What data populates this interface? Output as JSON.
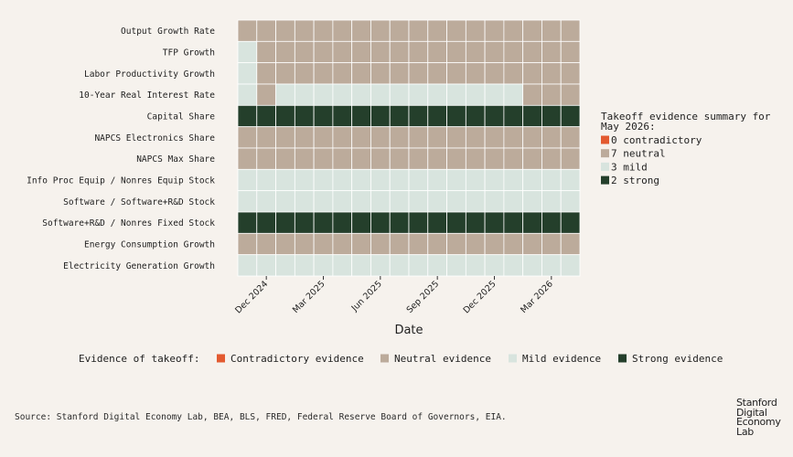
{
  "chart_data": {
    "type": "heatmap",
    "title": "",
    "xlabel": "Date",
    "ylabel": "",
    "x_ticks": [
      "Dec 2024",
      "Mar 2025",
      "Jun 2025",
      "Sep 2025",
      "Dec 2025",
      "Mar 2026"
    ],
    "x_periods": [
      "Nov 2024",
      "Dec 2024",
      "Jan 2025",
      "Feb 2025",
      "Mar 2025",
      "Apr 2025",
      "May 2025",
      "Jun 2025",
      "Jul 2025",
      "Aug 2025",
      "Sep 2025",
      "Oct 2025",
      "Nov 2025",
      "Dec 2025",
      "Jan 2026",
      "Feb 2026",
      "Mar 2026",
      "Apr 2026"
    ],
    "categories": [
      "Output Growth Rate",
      "TFP Growth",
      "Labor Productivity Growth",
      "10-Year Real Interest Rate",
      "Capital Share",
      "NAPCS Electronics Share",
      "NAPCS Max Share",
      "Info Proc Equip / Nonres Equip Stock",
      "Software / Software+R&D Stock",
      "Software+R&D / Nonres Fixed Stock",
      "Energy Consumption Growth",
      "Electricity Generation Growth"
    ],
    "levels": [
      "contradictory",
      "neutral",
      "mild",
      "strong"
    ],
    "colors": {
      "contradictory": "#e35a30",
      "neutral": "#bcab9b",
      "mild": "#d8e4de",
      "strong": "#243f2b"
    },
    "grid_color": "#ffffff",
    "values": [
      [
        "neutral",
        "neutral",
        "neutral",
        "neutral",
        "neutral",
        "neutral",
        "neutral",
        "neutral",
        "neutral",
        "neutral",
        "neutral",
        "neutral",
        "neutral",
        "neutral",
        "neutral",
        "neutral",
        "neutral",
        "neutral"
      ],
      [
        "mild",
        "neutral",
        "neutral",
        "neutral",
        "neutral",
        "neutral",
        "neutral",
        "neutral",
        "neutral",
        "neutral",
        "neutral",
        "neutral",
        "neutral",
        "neutral",
        "neutral",
        "neutral",
        "neutral",
        "neutral"
      ],
      [
        "mild",
        "neutral",
        "neutral",
        "neutral",
        "neutral",
        "neutral",
        "neutral",
        "neutral",
        "neutral",
        "neutral",
        "neutral",
        "neutral",
        "neutral",
        "neutral",
        "neutral",
        "neutral",
        "neutral",
        "neutral"
      ],
      [
        "mild",
        "neutral",
        "mild",
        "mild",
        "mild",
        "mild",
        "mild",
        "mild",
        "mild",
        "mild",
        "mild",
        "mild",
        "mild",
        "mild",
        "mild",
        "neutral",
        "neutral",
        "neutral"
      ],
      [
        "strong",
        "strong",
        "strong",
        "strong",
        "strong",
        "strong",
        "strong",
        "strong",
        "strong",
        "strong",
        "strong",
        "strong",
        "strong",
        "strong",
        "strong",
        "strong",
        "strong",
        "strong"
      ],
      [
        "neutral",
        "neutral",
        "neutral",
        "neutral",
        "neutral",
        "neutral",
        "neutral",
        "neutral",
        "neutral",
        "neutral",
        "neutral",
        "neutral",
        "neutral",
        "neutral",
        "neutral",
        "neutral",
        "neutral",
        "neutral"
      ],
      [
        "neutral",
        "neutral",
        "neutral",
        "neutral",
        "neutral",
        "neutral",
        "neutral",
        "neutral",
        "neutral",
        "neutral",
        "neutral",
        "neutral",
        "neutral",
        "neutral",
        "neutral",
        "neutral",
        "neutral",
        "neutral"
      ],
      [
        "mild",
        "mild",
        "mild",
        "mild",
        "mild",
        "mild",
        "mild",
        "mild",
        "mild",
        "mild",
        "mild",
        "mild",
        "mild",
        "mild",
        "mild",
        "mild",
        "mild",
        "mild"
      ],
      [
        "mild",
        "mild",
        "mild",
        "mild",
        "mild",
        "mild",
        "mild",
        "mild",
        "mild",
        "mild",
        "mild",
        "mild",
        "mild",
        "mild",
        "mild",
        "mild",
        "mild",
        "mild"
      ],
      [
        "strong",
        "strong",
        "strong",
        "strong",
        "strong",
        "strong",
        "strong",
        "strong",
        "strong",
        "strong",
        "strong",
        "strong",
        "strong",
        "strong",
        "strong",
        "strong",
        "strong",
        "strong"
      ],
      [
        "neutral",
        "neutral",
        "neutral",
        "neutral",
        "neutral",
        "neutral",
        "neutral",
        "neutral",
        "neutral",
        "neutral",
        "neutral",
        "neutral",
        "neutral",
        "neutral",
        "neutral",
        "neutral",
        "neutral",
        "neutral"
      ],
      [
        "mild",
        "mild",
        "mild",
        "mild",
        "mild",
        "mild",
        "mild",
        "mild",
        "mild",
        "mild",
        "mild",
        "mild",
        "mild",
        "mild",
        "mild",
        "mild",
        "mild",
        "mild"
      ]
    ],
    "summary": {
      "title_lines": [
        "Takeoff evidence summary for",
        "May 2026:"
      ],
      "items": [
        {
          "level": "contradictory",
          "count": 0,
          "label": "0 contradictory"
        },
        {
          "level": "neutral",
          "count": 7,
          "label": "7 neutral"
        },
        {
          "level": "mild",
          "count": 3,
          "label": "3 mild"
        },
        {
          "level": "strong",
          "count": 2,
          "label": "2 strong"
        }
      ]
    },
    "legend": {
      "title": "Evidence of takeoff:",
      "placement": "bottom",
      "items": [
        {
          "level": "contradictory",
          "label": "Contradictory evidence"
        },
        {
          "level": "neutral",
          "label": "Neutral evidence"
        },
        {
          "level": "mild",
          "label": "Mild evidence"
        },
        {
          "level": "strong",
          "label": "Strong evidence"
        }
      ]
    }
  },
  "footer": {
    "source": "Source: Stanford Digital Economy Lab, BEA, BLS, FRED, Federal Reserve Board of Governors, EIA."
  },
  "logo": {
    "lines": [
      "Stanford",
      "Digital",
      "Economy",
      "Lab"
    ]
  }
}
